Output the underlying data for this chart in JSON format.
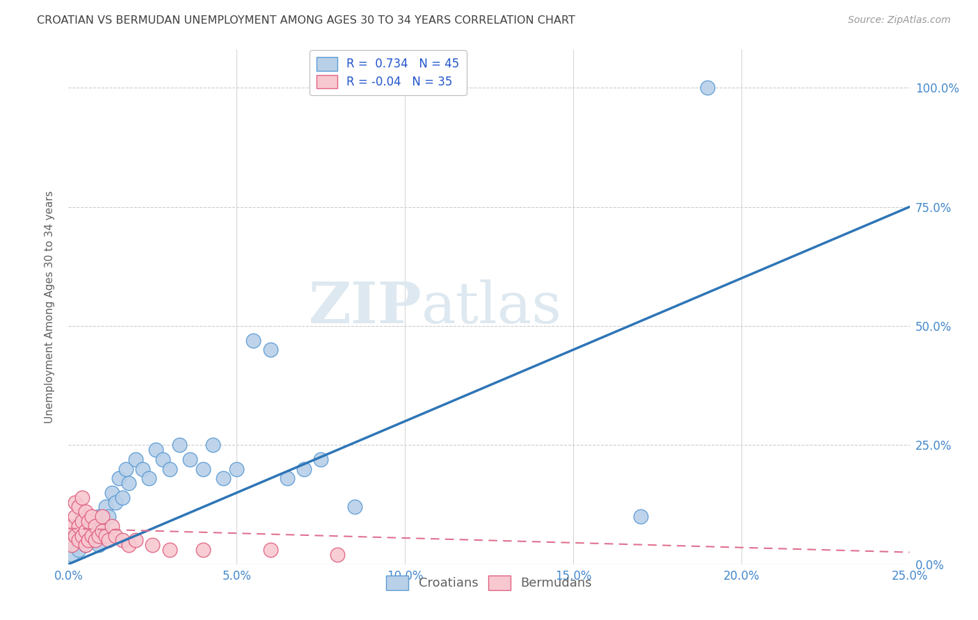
{
  "title": "CROATIAN VS BERMUDAN UNEMPLOYMENT AMONG AGES 30 TO 34 YEARS CORRELATION CHART",
  "source": "Source: ZipAtlas.com",
  "ylabel": "Unemployment Among Ages 30 to 34 years",
  "xlim": [
    0,
    0.25
  ],
  "ylim": [
    0,
    1.08
  ],
  "xticks": [
    0.0,
    0.05,
    0.1,
    0.15,
    0.2,
    0.25
  ],
  "yticks": [
    0.0,
    0.25,
    0.5,
    0.75,
    1.0
  ],
  "croatian_R": 0.734,
  "croatian_N": 45,
  "bermudan_R": -0.04,
  "bermudan_N": 35,
  "croatian_color": "#b8d0e8",
  "croatian_edge_color": "#5b9bd5",
  "croatian_line_color": "#2e75b6",
  "bermudan_color": "#f8c8d0",
  "bermudan_edge_color": "#e06080",
  "bermudan_line_color": "#e07090",
  "background_color": "#ffffff",
  "grid_color": "#cccccc",
  "title_color": "#404040",
  "axis_label_color": "#606060",
  "tick_label_color": "#4488cc",
  "legend_R_color": "#2255cc",
  "watermark_color": "#dde8f0",
  "croatian_x": [
    0.001,
    0.002,
    0.002,
    0.003,
    0.003,
    0.004,
    0.004,
    0.005,
    0.005,
    0.006,
    0.006,
    0.007,
    0.007,
    0.008,
    0.009,
    0.009,
    0.01,
    0.011,
    0.012,
    0.013,
    0.014,
    0.015,
    0.016,
    0.017,
    0.018,
    0.02,
    0.022,
    0.024,
    0.026,
    0.028,
    0.03,
    0.033,
    0.036,
    0.04,
    0.043,
    0.046,
    0.05,
    0.055,
    0.06,
    0.065,
    0.07,
    0.075,
    0.085,
    0.17,
    0.19
  ],
  "croatian_y": [
    0.02,
    0.04,
    0.06,
    0.03,
    0.08,
    0.05,
    0.1,
    0.04,
    0.07,
    0.06,
    0.09,
    0.05,
    0.08,
    0.06,
    0.04,
    0.1,
    0.08,
    0.12,
    0.1,
    0.15,
    0.13,
    0.18,
    0.14,
    0.2,
    0.17,
    0.22,
    0.2,
    0.18,
    0.24,
    0.22,
    0.2,
    0.25,
    0.22,
    0.2,
    0.25,
    0.18,
    0.2,
    0.47,
    0.45,
    0.18,
    0.2,
    0.22,
    0.12,
    0.1,
    1.0
  ],
  "bermudan_x": [
    0.001,
    0.001,
    0.002,
    0.002,
    0.002,
    0.003,
    0.003,
    0.003,
    0.004,
    0.004,
    0.004,
    0.005,
    0.005,
    0.005,
    0.006,
    0.006,
    0.007,
    0.007,
    0.008,
    0.008,
    0.009,
    0.01,
    0.01,
    0.011,
    0.012,
    0.013,
    0.014,
    0.016,
    0.018,
    0.02,
    0.025,
    0.03,
    0.04,
    0.06,
    0.08
  ],
  "bermudan_y": [
    0.04,
    0.08,
    0.06,
    0.1,
    0.13,
    0.05,
    0.08,
    0.12,
    0.06,
    0.09,
    0.14,
    0.04,
    0.07,
    0.11,
    0.05,
    0.09,
    0.06,
    0.1,
    0.05,
    0.08,
    0.06,
    0.07,
    0.1,
    0.06,
    0.05,
    0.08,
    0.06,
    0.05,
    0.04,
    0.05,
    0.04,
    0.03,
    0.03,
    0.03,
    0.02
  ],
  "blue_line_x0": 0.0,
  "blue_line_y0": 0.0,
  "blue_line_x1": 0.25,
  "blue_line_y1": 0.75,
  "pink_line_x0": 0.0,
  "pink_line_y0": 0.075,
  "pink_line_x1": 0.25,
  "pink_line_y1": 0.025
}
